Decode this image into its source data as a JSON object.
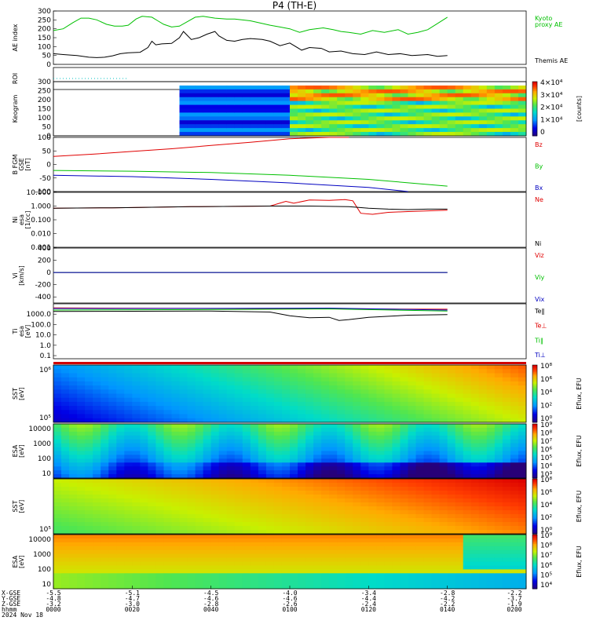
{
  "title": "P4 (TH-E)",
  "chart_data": [
    {
      "id": "ae",
      "type": "line",
      "ylabel": [
        "AE index"
      ],
      "ylim": [
        0,
        300
      ],
      "yticks": [
        0,
        50,
        100,
        150,
        200,
        250,
        300
      ],
      "series": [
        {
          "name": "Kyoto",
          "name2": "proxy AE",
          "color": "#00c000",
          "x": [
            0,
            5,
            10,
            14,
            18,
            22,
            27,
            31,
            35,
            38,
            42,
            45,
            50,
            53,
            56,
            60,
            64,
            68,
            72,
            76,
            82,
            88,
            92,
            100,
            106,
            110,
            115,
            120,
            125,
            130,
            137,
            142,
            146,
            150,
            156,
            162,
            168,
            175,
            180,
            185,
            190,
            195,
            200
          ],
          "y": [
            190,
            200,
            235,
            260,
            260,
            250,
            225,
            215,
            215,
            220,
            255,
            270,
            265,
            245,
            225,
            210,
            215,
            240,
            265,
            270,
            260,
            255,
            255,
            245,
            230,
            220,
            210,
            200,
            180,
            195,
            205,
            195,
            185,
            180,
            170,
            190,
            180,
            195,
            170,
            180,
            195,
            230,
            265
          ]
        },
        {
          "name": "Themis AE",
          "color": "#000000",
          "x": [
            0,
            5,
            12,
            18,
            22,
            26,
            30,
            34,
            38,
            44,
            48,
            50,
            52,
            55,
            60,
            64,
            66,
            70,
            74,
            78,
            82,
            84,
            88,
            92,
            96,
            100,
            106,
            110,
            115,
            120,
            126,
            130,
            136,
            140,
            146,
            152,
            158,
            164,
            170,
            176,
            182,
            190,
            195,
            200
          ],
          "y": [
            60,
            55,
            50,
            40,
            38,
            40,
            48,
            60,
            65,
            68,
            95,
            130,
            110,
            115,
            118,
            150,
            185,
            140,
            150,
            170,
            185,
            160,
            135,
            130,
            140,
            145,
            140,
            130,
            105,
            120,
            80,
            95,
            90,
            70,
            75,
            60,
            55,
            70,
            55,
            60,
            50,
            55,
            45,
            50
          ]
        }
      ]
    },
    {
      "id": "roi",
      "type": "scatter",
      "ylabel": [
        "ROI"
      ],
      "ylim": [
        0,
        1
      ],
      "series": [
        {
          "name": "",
          "color": "#00c0c0",
          "x_range": [
            0,
            38
          ],
          "y": 0.5
        }
      ]
    },
    {
      "id": "keogram",
      "type": "heatmap",
      "ylabel": [
        "Keogram"
      ],
      "ylim": [
        0,
        300
      ],
      "yticks": [
        0,
        50,
        100,
        150,
        200,
        250,
        300
      ],
      "data_range_x": [
        51,
        200
      ],
      "data_range_y": [
        0,
        260
      ],
      "colorbar": {
        "label": "[counts]",
        "ticks": [
          "4×10⁴",
          "3×10⁴",
          "2×10⁴",
          "1×10⁴",
          "0"
        ]
      }
    },
    {
      "id": "bfgm",
      "type": "line",
      "ylabel": [
        "B FGM",
        "GSE",
        "[nT]"
      ],
      "ylim": [
        -100,
        100
      ],
      "yticks": [
        -100,
        -50,
        0,
        50,
        100
      ],
      "series": [
        {
          "name": "Bz",
          "color": "#e00000",
          "x": [
            0,
            20,
            40,
            60,
            80,
            100,
            120,
            140,
            150
          ],
          "y": [
            30,
            38,
            48,
            58,
            70,
            82,
            95,
            107,
            115
          ]
        },
        {
          "name": "By",
          "color": "#00c000",
          "x": [
            0,
            40,
            80,
            120,
            160,
            200
          ],
          "y": [
            -22,
            -25,
            -30,
            -40,
            -55,
            -80
          ]
        },
        {
          "name": "Bx",
          "color": "#0000c0",
          "x": [
            0,
            40,
            80,
            120,
            160,
            180
          ],
          "y": [
            -40,
            -45,
            -55,
            -68,
            -85,
            -100
          ]
        }
      ]
    },
    {
      "id": "ni",
      "type": "line",
      "ylabel": [
        "Ni",
        "esa",
        "[1/cc]"
      ],
      "yscale": "log",
      "ylim": [
        0.001,
        10
      ],
      "yticks": [
        "0.001",
        "0.010",
        "0.100",
        "1.000",
        "10.000"
      ],
      "series": [
        {
          "name": "Ne",
          "color": "#e00000",
          "x": [
            0,
            30,
            70,
            110,
            116,
            118,
            122,
            130,
            140,
            148,
            152,
            156,
            162,
            170,
            180,
            190,
            200
          ],
          "y": [
            0.7,
            0.75,
            0.9,
            1.0,
            1.8,
            2.2,
            1.6,
            2.8,
            2.6,
            3.0,
            2.4,
            0.3,
            0.25,
            0.35,
            0.4,
            0.45,
            0.5
          ]
        },
        {
          "name": "Ni",
          "color": "#000000",
          "x": [
            0,
            30,
            70,
            110,
            130,
            150,
            160,
            170,
            180,
            190,
            200
          ],
          "y": [
            0.7,
            0.75,
            0.9,
            1.0,
            1.0,
            0.9,
            0.7,
            0.6,
            0.55,
            0.6,
            0.6
          ]
        }
      ]
    },
    {
      "id": "vi",
      "type": "line",
      "ylabel": [
        "Vi",
        "[km/s]"
      ],
      "ylim": [
        -500,
        400
      ],
      "yticks": [
        -400,
        -200,
        0,
        200,
        400
      ],
      "series": [
        {
          "name": "Viz",
          "color": "#e00000",
          "x": [
            0,
            200
          ],
          "y": [
            0,
            0
          ]
        },
        {
          "name": "Viy",
          "color": "#00c000",
          "x": [
            0,
            200
          ],
          "y": [
            0,
            0
          ]
        },
        {
          "name": "Vix",
          "color": "#0000c0",
          "x": [
            0,
            200
          ],
          "y": [
            0,
            0
          ]
        }
      ]
    },
    {
      "id": "ti",
      "type": "line",
      "ylabel": [
        "Ti",
        "esa",
        "[eV]"
      ],
      "yscale": "log",
      "ylim": [
        0.05,
        10000
      ],
      "yticks": [
        "0.1",
        "1.0",
        "10.0",
        "100.0",
        "1000.0"
      ],
      "series": [
        {
          "name": "Te‖",
          "color": "#000000",
          "x": [
            0,
            40,
            80,
            110,
            120,
            130,
            140,
            145,
            150,
            160,
            180,
            200
          ],
          "y": [
            1800,
            1900,
            2000,
            1600,
            700,
            450,
            500,
            250,
            300,
            500,
            800,
            900
          ]
        },
        {
          "name": "Te⊥",
          "color": "#e00000",
          "x": [
            0,
            200
          ],
          "y": [
            4000,
            3000
          ]
        },
        {
          "name": "Ti‖",
          "color": "#00c000",
          "x": [
            0,
            80,
            140,
            200
          ],
          "y": [
            2500,
            2800,
            3200,
            2000
          ]
        },
        {
          "name": "Ti⊥",
          "color": "#0000c0",
          "x": [
            0,
            80,
            140,
            200
          ],
          "y": [
            3500,
            3600,
            3800,
            2500
          ]
        }
      ]
    },
    {
      "id": "sst_e",
      "type": "heatmap",
      "ylabel": [
        "SST",
        "[eV]"
      ],
      "ylim_log": [
        5,
        7
      ],
      "yticks": [
        "10⁵",
        "10⁶"
      ],
      "colorbar": {
        "label": "Eflux, EFU",
        "ticks": [
          "10⁸",
          "10⁶",
          "10⁴",
          "10²",
          "10⁰"
        ]
      }
    },
    {
      "id": "esa_e",
      "type": "heatmap",
      "ylabel": [
        "ESA",
        "[eV]"
      ],
      "ylim_log": [
        1,
        4.2
      ],
      "yticks": [
        "10",
        "100",
        "1000",
        "10000"
      ],
      "colorbar": {
        "label": "Eflux, EFU",
        "ticks": [
          "10⁹",
          "10⁸",
          "10⁷",
          "10⁶",
          "10⁵",
          "10⁴",
          "10³"
        ]
      }
    },
    {
      "id": "sst_i",
      "type": "heatmap",
      "ylabel": [
        "SST",
        "[eV]"
      ],
      "ylim_log": [
        4.5,
        6.5
      ],
      "yticks": [
        "10⁵"
      ],
      "colorbar": {
        "label": "Eflux, EFU",
        "ticks": [
          "10⁸",
          "10⁶",
          "10⁴",
          "10²",
          "10⁰"
        ]
      }
    },
    {
      "id": "esa_i",
      "type": "heatmap",
      "ylabel": [
        "ESA",
        "[eV]"
      ],
      "ylim_log": [
        1,
        4.2
      ],
      "yticks": [
        "10",
        "100",
        "1000",
        "10000"
      ],
      "colorbar": {
        "label": "Eflux, EFU",
        "ticks": [
          "10⁹",
          "10⁸",
          "10⁷",
          "10⁶",
          "10⁵",
          "10⁴"
        ]
      }
    }
  ],
  "xaxis": {
    "row_labels": [
      "X-GSE",
      "Y-GSE",
      "Z-GSE",
      "hhmm",
      "2024 Nov 18"
    ],
    "ticks": [
      {
        "x": 0,
        "vals": [
          "-5.5",
          "-4.8",
          "-3.2",
          "0000"
        ]
      },
      {
        "x": 40,
        "vals": [
          "-5.1",
          "-4.7",
          "-3.0",
          "0020"
        ]
      },
      {
        "x": 80,
        "vals": [
          "-4.5",
          "-4.6",
          "-2.8",
          "0040"
        ]
      },
      {
        "x": 120,
        "vals": [
          "-4.0",
          "-4.6",
          "-2.6",
          "0100"
        ]
      },
      {
        "x": 160,
        "vals": [
          "-3.4",
          "-4.4",
          "-2.4",
          "0120"
        ]
      },
      {
        "x": 200,
        "vals": [
          "-2.8",
          "-4.2",
          "-2.2",
          "0140"
        ]
      },
      {
        "x": 240,
        "vals": [
          "-2.2",
          "-3.7",
          "-1.9",
          "0200"
        ]
      }
    ],
    "xlim": [
      0,
      240
    ]
  }
}
